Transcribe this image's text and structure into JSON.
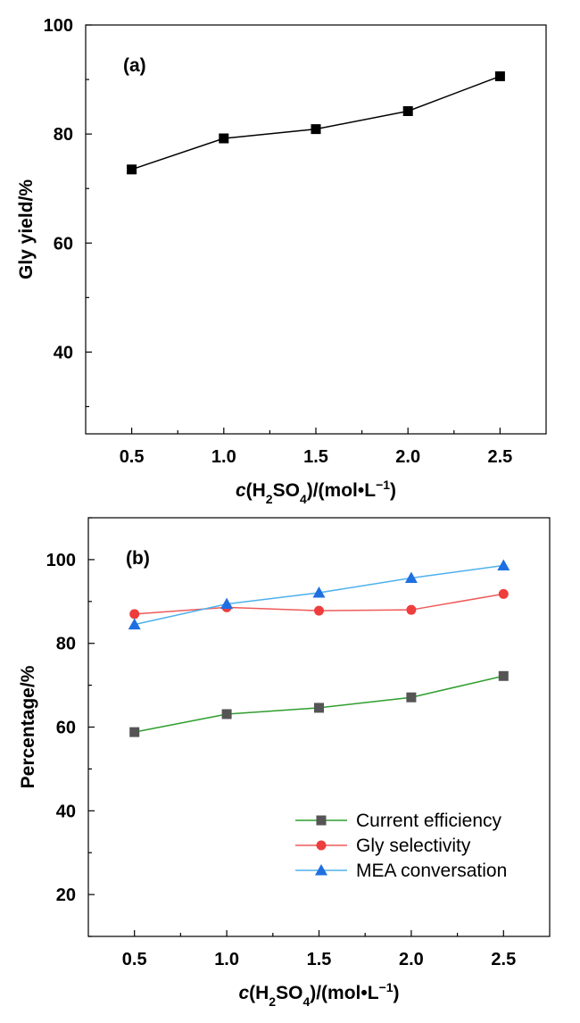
{
  "chart_data": [
    {
      "type": "line",
      "panel_label": "(a)",
      "xlabel": {
        "italic": "c",
        "pre": "(H",
        "sub1": "2",
        "mid": "SO",
        "sub2": "4",
        "post": ")/(mol•L",
        "sup": "−1",
        "end": ")"
      },
      "ylabel": "Gly yield/%",
      "x": [
        0.5,
        1.0,
        1.5,
        2.0,
        2.5
      ],
      "x_ticks": [
        "0.5",
        "1.0",
        "1.5",
        "2.0",
        "2.5"
      ],
      "y_ticks": [
        40,
        60,
        80,
        100
      ],
      "xlim": [
        0.25,
        2.75
      ],
      "ylim": [
        25,
        100
      ],
      "grid": false,
      "series": [
        {
          "values": [
            73.5,
            79.2,
            80.9,
            84.2,
            90.6
          ],
          "marker": "square",
          "color": "#000000"
        }
      ]
    },
    {
      "type": "line",
      "panel_label": "(b)",
      "xlabel": {
        "italic": "c",
        "pre": "(H",
        "sub1": "2",
        "mid": "SO",
        "sub2": "4",
        "post": ")/(mol•L",
        "sup": "−1",
        "end": ")"
      },
      "ylabel": "Percentage/%",
      "x": [
        0.5,
        1.0,
        1.5,
        2.0,
        2.5
      ],
      "x_ticks": [
        "0.5",
        "1.0",
        "1.5",
        "2.0",
        "2.5"
      ],
      "y_ticks": [
        20,
        40,
        60,
        80,
        100
      ],
      "xlim": [
        0.25,
        2.75
      ],
      "ylim": [
        10,
        110
      ],
      "grid": false,
      "legend_position": "bottom-right",
      "series": [
        {
          "name": "Current efficiency",
          "values": [
            58.8,
            63.1,
            64.6,
            67.1,
            72.2
          ],
          "marker": "square",
          "marker_color": "#555555",
          "line_color": "#2e9e2e"
        },
        {
          "name": "Gly selectivity",
          "values": [
            87.0,
            88.6,
            87.8,
            88.0,
            91.8
          ],
          "marker": "circle",
          "marker_color": "#ee3d3d",
          "line_color": "#ee5a5a"
        },
        {
          "name": "MEA conversation",
          "values": [
            84.5,
            89.4,
            92.1,
            95.6,
            98.6
          ],
          "marker": "triangle",
          "marker_color": "#1f6fe0",
          "line_color": "#4eb0ee"
        }
      ]
    }
  ]
}
